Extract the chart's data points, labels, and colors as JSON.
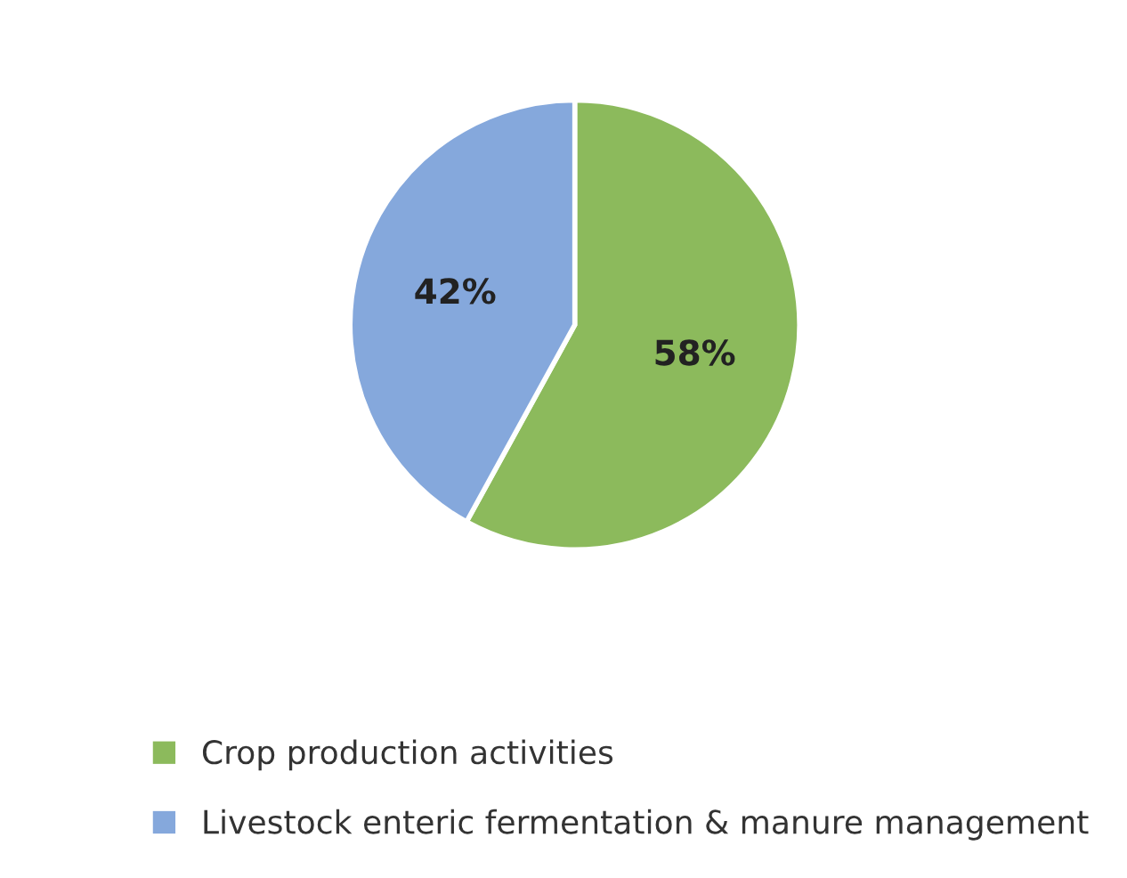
{
  "chart_data": {
    "type": "pie",
    "categories": [
      "Crop production activities",
      "Livestock enteric fermentation & manure management"
    ],
    "values": [
      58,
      42
    ],
    "colors": [
      "#8cba5c",
      "#85a8dc"
    ],
    "value_labels": [
      "58%",
      "42%"
    ],
    "legend": "bottom"
  }
}
